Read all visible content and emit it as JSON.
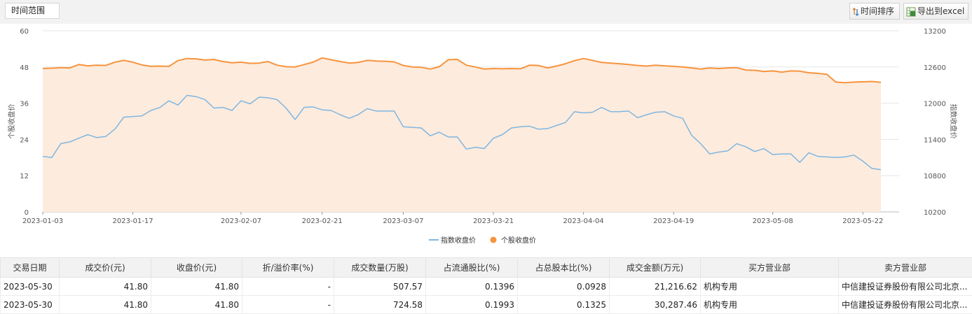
{
  "toolbar": {
    "range_label": "时间范围",
    "sort_label": "时间排序",
    "export_label": "导出到excel"
  },
  "chart_data": {
    "type": "line",
    "x_tick_labels": [
      "2023-01-03",
      "2023-01-17",
      "2023-02-07",
      "2023-02-21",
      "2023-03-07",
      "2023-03-21",
      "2023-04-04",
      "2023-04-19",
      "2023-05-08",
      "2023-05-22"
    ],
    "y_left": {
      "label": "个股收盘价",
      "min": 0,
      "max": 60,
      "ticks": [
        0,
        12,
        24,
        36,
        48,
        60
      ]
    },
    "y_right": {
      "label": "指数收盘价",
      "min": 10200,
      "max": 13200,
      "ticks": [
        10200,
        10800,
        11400,
        12000,
        12600,
        13200
      ]
    },
    "legend_position": "bottom",
    "grid": true,
    "series": [
      {
        "name": "指数收盘价",
        "axis": "right",
        "color": "#7fb6e0",
        "fill": false,
        "values": [
          11120,
          11100,
          11330,
          11360,
          11420,
          11480,
          11430,
          11450,
          11570,
          11770,
          11780,
          11790,
          11880,
          11930,
          12040,
          11970,
          12130,
          12110,
          12060,
          11920,
          11930,
          11880,
          12040,
          11990,
          12100,
          12090,
          12060,
          11920,
          11730,
          11930,
          11940,
          11890,
          11880,
          11810,
          11750,
          11810,
          11910,
          11870,
          11870,
          11870,
          11610,
          11600,
          11590,
          11460,
          11520,
          11440,
          11440,
          11240,
          11270,
          11250,
          11420,
          11480,
          11590,
          11610,
          11620,
          11570,
          11580,
          11630,
          11680,
          11860,
          11840,
          11850,
          11930,
          11860,
          11860,
          11870,
          11760,
          11810,
          11850,
          11860,
          11790,
          11750,
          11470,
          11330,
          11160,
          11190,
          11210,
          11330,
          11280,
          11200,
          11250,
          11150,
          11160,
          11160,
          11020,
          11180,
          11120,
          11110,
          11100,
          11110,
          11140,
          11040,
          10920,
          10900
        ]
      },
      {
        "name": "个股收盘价",
        "axis": "left",
        "color": "#f7943e",
        "fill": true,
        "fill_color": "#fdebdd",
        "values": [
          47.5,
          47.6,
          47.8,
          47.7,
          48.8,
          48.4,
          48.6,
          48.5,
          49.6,
          50.2,
          49.6,
          48.7,
          48.2,
          48.3,
          48.2,
          50.1,
          50.8,
          50.7,
          50.3,
          50.5,
          49.8,
          49.4,
          49.6,
          49.2,
          49.3,
          49.8,
          48.6,
          48.1,
          48.0,
          48.8,
          49.6,
          51.0,
          50.4,
          49.8,
          49.3,
          49.5,
          50.2,
          50.0,
          49.9,
          49.7,
          48.5,
          48.0,
          47.9,
          47.3,
          48.1,
          50.4,
          50.5,
          48.6,
          48.0,
          47.3,
          47.5,
          47.4,
          47.5,
          47.4,
          48.6,
          48.5,
          47.7,
          48.3,
          49.1,
          50.1,
          50.8,
          50.2,
          49.5,
          49.3,
          49.1,
          48.8,
          48.5,
          48.3,
          48.6,
          48.4,
          48.2,
          48.0,
          47.7,
          47.3,
          47.7,
          47.5,
          47.7,
          47.8,
          47.0,
          46.9,
          46.5,
          46.7,
          46.3,
          46.7,
          46.6,
          46.1,
          45.9,
          45.6,
          43.0,
          42.8,
          43.0,
          43.1,
          43.2,
          42.9
        ]
      }
    ]
  },
  "table": {
    "headers": [
      "交易日期",
      "成交价(元)",
      "收盘价(元)",
      "折/溢价率(%)",
      "成交数量(万股)",
      "占流通股比(%)",
      "占总股本比(%)",
      "成交金额(万元)",
      "买方营业部",
      "卖方营业部"
    ],
    "rows": [
      [
        "2023-05-30",
        "41.80",
        "41.80",
        "-",
        "507.57",
        "0.1396",
        "0.0928",
        "21,216.62",
        "机构专用",
        "中信建投证券股份有限公司北京..."
      ],
      [
        "2023-05-30",
        "41.80",
        "41.80",
        "-",
        "724.58",
        "0.1993",
        "0.1325",
        "30,287.46",
        "机构专用",
        "中信建投证券股份有限公司北京..."
      ]
    ]
  }
}
